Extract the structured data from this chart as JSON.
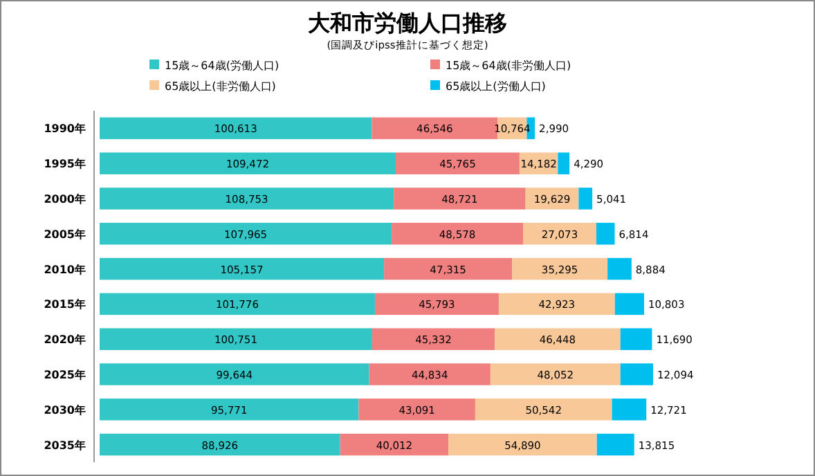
{
  "chart_data": {
    "type": "bar",
    "orientation": "horizontal",
    "stacked": true,
    "title": "大和市労働人口推移",
    "subtitle": "(国調及びipss推計に基づく想定)",
    "categories": [
      "1990年",
      "1995年",
      "2000年",
      "2005年",
      "2010年",
      "2015年",
      "2020年",
      "2025年",
      "2030年",
      "2035年"
    ],
    "series": [
      {
        "name": "15歳～64歳(労働人口)",
        "color": "#33c6c6",
        "values": [
          100613,
          109472,
          108753,
          107965,
          105157,
          101776,
          100751,
          99644,
          95771,
          88926
        ],
        "value_labels": [
          "100,613",
          "109,472",
          "108,753",
          "107,965",
          "105,157",
          "101,776",
          "100,751",
          "99,644",
          "95,771",
          "88,926"
        ]
      },
      {
        "name": "15歳～64歳(非労働人口)",
        "color": "#f08080",
        "values": [
          46546,
          45765,
          48721,
          48578,
          47315,
          45793,
          45332,
          44834,
          43091,
          40012
        ],
        "value_labels": [
          "46,546",
          "45,765",
          "48,721",
          "48,578",
          "47,315",
          "45,793",
          "45,332",
          "44,834",
          "43,091",
          "40,012"
        ]
      },
      {
        "name": "65歳以上(非労働人口)",
        "color": "#f8c898",
        "values": [
          10764,
          14182,
          19629,
          27073,
          35295,
          42923,
          46448,
          48052,
          50542,
          54890
        ],
        "value_labels": [
          "10,764",
          "14,182",
          "19,629",
          "27,073",
          "35,295",
          "42,923",
          "46,448",
          "48,052",
          "50,542",
          "54,890"
        ]
      },
      {
        "name": "65歳以上(労働人口)",
        "color": "#00bfef",
        "values": [
          2990,
          4290,
          5041,
          6814,
          8884,
          10803,
          11690,
          12094,
          12721,
          13815
        ],
        "value_labels": [
          "2,990",
          "4,290",
          "5,041",
          "6,814",
          "8,884",
          "10,803",
          "11,690",
          "12,094",
          "12,721",
          "13,815"
        ]
      }
    ],
    "legend": "top"
  }
}
